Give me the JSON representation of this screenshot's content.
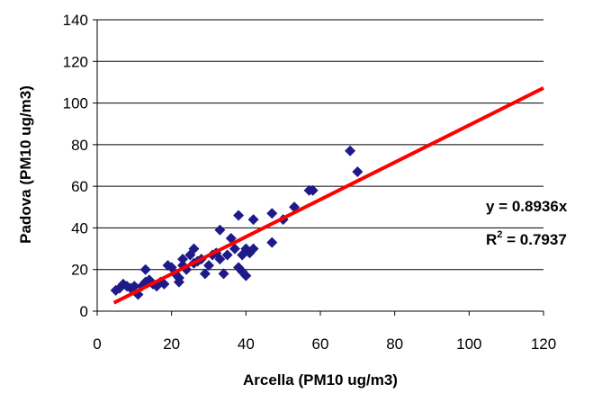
{
  "chart_data": {
    "type": "scatter",
    "title": "",
    "xlabel": "Arcella (PM10 ug/m3)",
    "ylabel": "Padova (PM10 ug/m3)",
    "xlim": [
      0,
      120
    ],
    "ylim": [
      0,
      140
    ],
    "x_ticks": [
      "0",
      "20",
      "40",
      "60",
      "80",
      "100",
      "120"
    ],
    "y_ticks": [
      "0",
      "20",
      "40",
      "60",
      "80",
      "100",
      "120",
      "140"
    ],
    "grid": "horizontal",
    "marker": "diamond",
    "colors": {
      "points": "#1f1a8a",
      "trendline": "#ff0000",
      "axes": "#000000"
    },
    "points": [
      [
        5,
        10
      ],
      [
        6,
        11
      ],
      [
        7,
        13
      ],
      [
        8,
        12
      ],
      [
        9,
        11
      ],
      [
        10,
        12
      ],
      [
        11,
        8
      ],
      [
        12,
        12
      ],
      [
        13,
        20
      ],
      [
        13,
        14
      ],
      [
        14,
        15
      ],
      [
        15,
        13
      ],
      [
        16,
        12
      ],
      [
        17,
        14
      ],
      [
        18,
        13
      ],
      [
        19,
        22
      ],
      [
        20,
        21
      ],
      [
        21,
        18
      ],
      [
        22,
        16
      ],
      [
        22,
        14
      ],
      [
        23,
        25
      ],
      [
        23,
        22
      ],
      [
        24,
        20
      ],
      [
        25,
        27
      ],
      [
        26,
        30
      ],
      [
        26,
        23
      ],
      [
        27,
        24
      ],
      [
        28,
        25
      ],
      [
        29,
        18
      ],
      [
        30,
        22
      ],
      [
        31,
        27
      ],
      [
        32,
        28
      ],
      [
        33,
        25
      ],
      [
        33,
        39
      ],
      [
        34,
        18
      ],
      [
        35,
        27
      ],
      [
        36,
        35
      ],
      [
        37,
        30
      ],
      [
        38,
        21
      ],
      [
        38,
        46
      ],
      [
        39,
        19
      ],
      [
        39,
        27
      ],
      [
        40,
        17
      ],
      [
        40,
        30
      ],
      [
        41,
        28
      ],
      [
        42,
        30
      ],
      [
        42,
        44
      ],
      [
        47,
        47
      ],
      [
        47,
        33
      ],
      [
        50,
        44
      ],
      [
        53,
        50
      ],
      [
        57,
        58
      ],
      [
        58,
        58
      ],
      [
        68,
        77
      ],
      [
        70,
        67
      ]
    ],
    "trendline": {
      "type": "linear-through-origin",
      "slope": 0.8936,
      "x_range": [
        4.5,
        120
      ],
      "equation": "y = 0.8936x",
      "r2_prefix": "R",
      "r2_exponent": "2",
      "r2_value": " = 0.7937"
    }
  }
}
